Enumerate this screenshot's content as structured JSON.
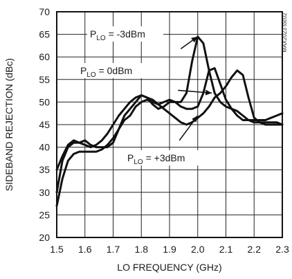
{
  "chart_data": {
    "type": "line",
    "title": "",
    "xlabel": "LO FREQUENCY (GHz)",
    "ylabel": "SIDEBAND REJECTION (dBc)",
    "xlim": [
      1.5,
      2.3
    ],
    "ylim": [
      20,
      70
    ],
    "x_ticks": [
      1.5,
      1.6,
      1.7,
      1.8,
      1.9,
      2.0,
      2.1,
      2.2,
      2.3
    ],
    "x_tick_labels": [
      "1.5",
      "1.6",
      "1.7",
      "1.8",
      "1.9",
      "2.0",
      "2.1",
      "2.2",
      "2.3"
    ],
    "y_ticks": [
      20,
      25,
      30,
      35,
      40,
      45,
      50,
      55,
      60,
      65,
      70
    ],
    "y_tick_labels": [
      "20",
      "25",
      "30",
      "35",
      "40",
      "45",
      "50",
      "55",
      "60",
      "65",
      "70"
    ],
    "grid": true,
    "series": [
      {
        "name": "PLO = -3dBm",
        "points": [
          [
            1.5,
            30
          ],
          [
            1.52,
            37
          ],
          [
            1.54,
            40
          ],
          [
            1.56,
            41
          ],
          [
            1.58,
            41
          ],
          [
            1.6,
            41.5
          ],
          [
            1.62,
            40.5
          ],
          [
            1.64,
            40
          ],
          [
            1.66,
            40
          ],
          [
            1.68,
            40
          ],
          [
            1.7,
            41
          ],
          [
            1.72,
            44
          ],
          [
            1.74,
            47
          ],
          [
            1.76,
            48.5
          ],
          [
            1.78,
            50
          ],
          [
            1.8,
            51.5
          ],
          [
            1.82,
            51
          ],
          [
            1.84,
            49.5
          ],
          [
            1.86,
            48.5
          ],
          [
            1.88,
            49
          ],
          [
            1.9,
            50
          ],
          [
            1.92,
            50
          ],
          [
            1.94,
            50
          ],
          [
            1.96,
            52
          ],
          [
            1.98,
            59
          ],
          [
            2.0,
            64.5
          ],
          [
            2.02,
            63
          ],
          [
            2.04,
            57
          ],
          [
            2.06,
            52
          ],
          [
            2.08,
            50
          ],
          [
            2.1,
            49
          ],
          [
            2.12,
            48.5
          ],
          [
            2.14,
            48
          ],
          [
            2.16,
            47
          ],
          [
            2.18,
            46
          ],
          [
            2.2,
            46
          ],
          [
            2.22,
            46
          ],
          [
            2.24,
            46
          ],
          [
            2.26,
            46.5
          ],
          [
            2.28,
            47
          ],
          [
            2.3,
            47.5
          ]
        ]
      },
      {
        "name": "PLO = 0dBm",
        "points": [
          [
            1.5,
            27
          ],
          [
            1.52,
            33
          ],
          [
            1.54,
            37
          ],
          [
            1.56,
            38.5
          ],
          [
            1.58,
            39
          ],
          [
            1.6,
            39
          ],
          [
            1.62,
            39
          ],
          [
            1.64,
            39
          ],
          [
            1.66,
            39.5
          ],
          [
            1.68,
            40.5
          ],
          [
            1.7,
            42
          ],
          [
            1.72,
            44
          ],
          [
            1.74,
            46
          ],
          [
            1.76,
            47
          ],
          [
            1.78,
            49
          ],
          [
            1.8,
            50
          ],
          [
            1.82,
            50.5
          ],
          [
            1.84,
            50
          ],
          [
            1.86,
            49.5
          ],
          [
            1.88,
            50
          ],
          [
            1.9,
            50.5
          ],
          [
            1.92,
            50
          ],
          [
            1.94,
            49
          ],
          [
            1.96,
            48.5
          ],
          [
            1.98,
            48.5
          ],
          [
            2.0,
            49
          ],
          [
            2.02,
            52
          ],
          [
            2.04,
            57
          ],
          [
            2.06,
            57.5
          ],
          [
            2.08,
            54
          ],
          [
            2.1,
            50.5
          ],
          [
            2.12,
            48.5
          ],
          [
            2.14,
            47
          ],
          [
            2.16,
            46
          ],
          [
            2.18,
            46
          ],
          [
            2.2,
            45.5
          ],
          [
            2.22,
            45.5
          ],
          [
            2.24,
            45.5
          ],
          [
            2.26,
            45.5
          ],
          [
            2.28,
            45.5
          ],
          [
            2.3,
            45
          ]
        ]
      },
      {
        "name": "PLO = +3dBm",
        "points": [
          [
            1.5,
            35
          ],
          [
            1.52,
            38
          ],
          [
            1.54,
            40.5
          ],
          [
            1.56,
            41.5
          ],
          [
            1.58,
            41
          ],
          [
            1.6,
            40.5
          ],
          [
            1.62,
            40
          ],
          [
            1.64,
            40.5
          ],
          [
            1.66,
            41.5
          ],
          [
            1.68,
            43
          ],
          [
            1.7,
            45
          ],
          [
            1.72,
            47
          ],
          [
            1.74,
            48.5
          ],
          [
            1.76,
            50
          ],
          [
            1.78,
            51
          ],
          [
            1.8,
            51.5
          ],
          [
            1.82,
            51
          ],
          [
            1.84,
            50.5
          ],
          [
            1.86,
            49.5
          ],
          [
            1.88,
            48.5
          ],
          [
            1.9,
            47.5
          ],
          [
            1.92,
            46.5
          ],
          [
            1.94,
            45.5
          ],
          [
            1.96,
            45
          ],
          [
            1.98,
            45.5
          ],
          [
            2.0,
            46.5
          ],
          [
            2.02,
            47.5
          ],
          [
            2.04,
            49
          ],
          [
            2.06,
            51
          ],
          [
            2.08,
            52
          ],
          [
            2.1,
            53.5
          ],
          [
            2.12,
            55.5
          ],
          [
            2.14,
            57
          ],
          [
            2.16,
            56
          ],
          [
            2.18,
            51
          ],
          [
            2.2,
            46.5
          ],
          [
            2.22,
            45.5
          ],
          [
            2.24,
            45
          ],
          [
            2.26,
            45
          ],
          [
            2.28,
            45
          ],
          [
            2.3,
            45
          ]
        ]
      }
    ],
    "annotations": [
      {
        "base": "P",
        "sub": "LO",
        "rest": " = -3dBm",
        "arrow_to": [
          2.0,
          64.5
        ]
      },
      {
        "base": "P",
        "sub": "LO",
        "rest": " = 0dBm",
        "arrow_to": [
          2.05,
          52
        ]
      },
      {
        "base": "P",
        "sub": "LO",
        "rest": " = +3dBm",
        "arrow_to": [
          2.0,
          47
        ]
      }
    ],
    "watermark": "MAX2023 toc02"
  }
}
